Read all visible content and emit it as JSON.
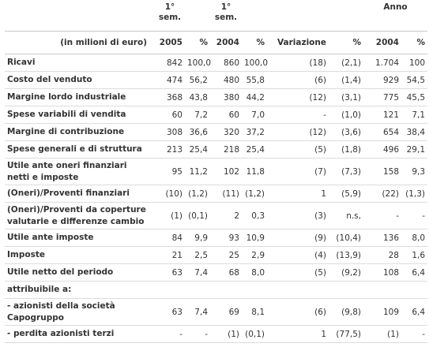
{
  "header": {
    "top": [
      "1° sem.",
      "1° sem.",
      "Anno"
    ],
    "columns": [
      "(in milioni di euro)",
      "2005",
      "%",
      "2004",
      "%",
      "Variazione",
      "%",
      "2004",
      "%"
    ]
  },
  "table": {
    "rows": [
      {
        "label": "Ricavi",
        "cells": [
          "842",
          "100,0",
          "860",
          "100,0",
          "(18)",
          "(2,1)",
          "1.704",
          "100"
        ]
      },
      {
        "label": "Costo del venduto",
        "cells": [
          "474",
          "56,2",
          "480",
          "55,8",
          "(6)",
          "(1,4)",
          "929",
          "54,5"
        ]
      },
      {
        "label": "Margine lordo industriale",
        "cells": [
          "368",
          "43,8",
          "380",
          "44,2",
          "(12)",
          "(3,1)",
          "775",
          "45,5"
        ]
      },
      {
        "label": "Spese variabili di vendita",
        "cells": [
          "60",
          "7,2",
          "60",
          "7,0",
          "-",
          "(1,0)",
          "121",
          "7,1"
        ]
      },
      {
        "label": "Margine di contribuzione",
        "cells": [
          "308",
          "36,6",
          "320",
          "37,2",
          "(12)",
          "(3,6)",
          "654",
          "38,4"
        ]
      },
      {
        "label": "Spese generali e di struttura",
        "cells": [
          "213",
          "25,4",
          "218",
          "25,4",
          "(5)",
          "(1,8)",
          "496",
          "29,1"
        ]
      },
      {
        "label": "Utile ante oneri finanziari\nnetti e imposte",
        "cells": [
          "95",
          "11,2",
          "102",
          "11,8",
          "(7)",
          "(7,3)",
          "158",
          "9,3"
        ]
      },
      {
        "label": "(Oneri)/Proventi finanziari",
        "cells": [
          "(10)",
          "(1,2)",
          "(11)",
          "(1,2)",
          "1",
          "(5,9)",
          "(22)",
          "(1,3)"
        ]
      },
      {
        "label": "(Oneri)/Proventi da coperture\nvalutarie e differenze cambio",
        "cells": [
          "(1)",
          "(0,1)",
          "2",
          "0,3",
          "(3)",
          "n.s,",
          "-",
          "-"
        ]
      },
      {
        "label": "Utile ante imposte",
        "cells": [
          "84",
          "9,9",
          "93",
          "10,9",
          "(9)",
          "(10,4)",
          "136",
          "8,0"
        ]
      },
      {
        "label": "Imposte",
        "cells": [
          "21",
          "2,5",
          "25",
          "2,9",
          "(4)",
          "(13,9)",
          "28",
          "1,6"
        ]
      },
      {
        "label": "Utile netto del periodo",
        "cells": [
          "63",
          "7,4",
          "68",
          "8,0",
          "(5)",
          "(9,2)",
          "108",
          "6,4"
        ]
      },
      {
        "label": "attribuibile a:",
        "cells": []
      },
      {
        "label": "- azionisti della società\nCapogruppo",
        "cells": [
          "63",
          "7,4",
          "69",
          "8,1",
          "(6)",
          "(9,8)",
          "109",
          "6,4"
        ]
      },
      {
        "label": "- perdita azionisti terzi",
        "cells": [
          "-",
          "-",
          "(1)",
          "(0,1)",
          "1",
          "(77,5)",
          "(1)",
          "-"
        ]
      }
    ]
  }
}
